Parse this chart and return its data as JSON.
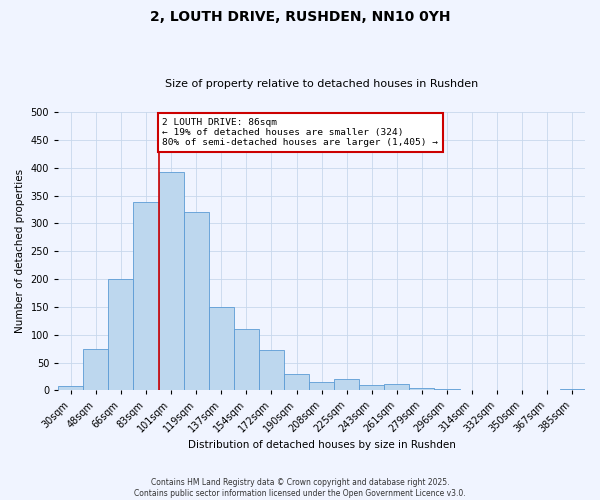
{
  "title": "2, LOUTH DRIVE, RUSHDEN, NN10 0YH",
  "subtitle": "Size of property relative to detached houses in Rushden",
  "xlabel": "Distribution of detached houses by size in Rushden",
  "ylabel": "Number of detached properties",
  "bar_labels": [
    "30sqm",
    "48sqm",
    "66sqm",
    "83sqm",
    "101sqm",
    "119sqm",
    "137sqm",
    "154sqm",
    "172sqm",
    "190sqm",
    "208sqm",
    "225sqm",
    "243sqm",
    "261sqm",
    "279sqm",
    "296sqm",
    "314sqm",
    "332sqm",
    "350sqm",
    "367sqm",
    "385sqm"
  ],
  "bar_values": [
    8,
    75,
    200,
    338,
    393,
    320,
    150,
    110,
    73,
    30,
    15,
    20,
    10,
    12,
    5,
    3,
    1,
    0,
    0,
    0,
    3
  ],
  "bar_color": "#BDD7EE",
  "bar_edge_color": "#5B9BD5",
  "vline_x": 3.5,
  "vline_color": "#CC0000",
  "annotation_title": "2 LOUTH DRIVE: 86sqm",
  "annotation_line1": "← 19% of detached houses are smaller (324)",
  "annotation_line2": "80% of semi-detached houses are larger (1,405) →",
  "annotation_box_color": "#CC0000",
  "ylim": [
    0,
    500
  ],
  "yticks": [
    0,
    50,
    100,
    150,
    200,
    250,
    300,
    350,
    400,
    450,
    500
  ],
  "footer1": "Contains HM Land Registry data © Crown copyright and database right 2025.",
  "footer2": "Contains public sector information licensed under the Open Government Licence v3.0.",
  "bg_color": "#F0F4FF",
  "grid_color": "#C8D8EC"
}
